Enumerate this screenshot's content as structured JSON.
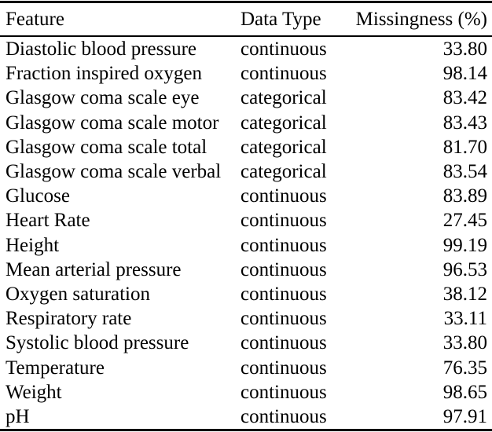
{
  "colors": {
    "text": "#000000",
    "rule": "#000000",
    "background": "#ffffff"
  },
  "table": {
    "columns": [
      {
        "id": "feature",
        "label": "Feature",
        "align": "left"
      },
      {
        "id": "data_type",
        "label": "Data Type",
        "align": "left"
      },
      {
        "id": "missingness",
        "label": "Missingness (%)",
        "align": "right"
      }
    ],
    "rows": [
      {
        "feature": "Diastolic blood pressure",
        "data_type": "continuous",
        "missingness": "33.80"
      },
      {
        "feature": "Fraction inspired oxygen",
        "data_type": "continuous",
        "missingness": "98.14"
      },
      {
        "feature": "Glasgow coma scale eye",
        "data_type": "categorical",
        "missingness": "83.42"
      },
      {
        "feature": "Glasgow coma scale motor",
        "data_type": "categorical",
        "missingness": "83.43"
      },
      {
        "feature": "Glasgow coma scale total",
        "data_type": "categorical",
        "missingness": "81.70"
      },
      {
        "feature": "Glasgow coma scale verbal",
        "data_type": "categorical",
        "missingness": "83.54"
      },
      {
        "feature": "Glucose",
        "data_type": "continuous",
        "missingness": "83.89"
      },
      {
        "feature": "Heart Rate",
        "data_type": "continuous",
        "missingness": "27.45"
      },
      {
        "feature": "Height",
        "data_type": "continuous",
        "missingness": "99.19"
      },
      {
        "feature": "Mean arterial pressure",
        "data_type": "continuous",
        "missingness": "96.53"
      },
      {
        "feature": "Oxygen saturation",
        "data_type": "continuous",
        "missingness": "38.12"
      },
      {
        "feature": "Respiratory rate",
        "data_type": "continuous",
        "missingness": "33.11"
      },
      {
        "feature": "Systolic blood pressure",
        "data_type": "continuous",
        "missingness": "33.80"
      },
      {
        "feature": "Temperature",
        "data_type": "continuous",
        "missingness": "76.35"
      },
      {
        "feature": "Weight",
        "data_type": "continuous",
        "missingness": "98.65"
      },
      {
        "feature": "pH",
        "data_type": "continuous",
        "missingness": "97.91"
      }
    ]
  }
}
